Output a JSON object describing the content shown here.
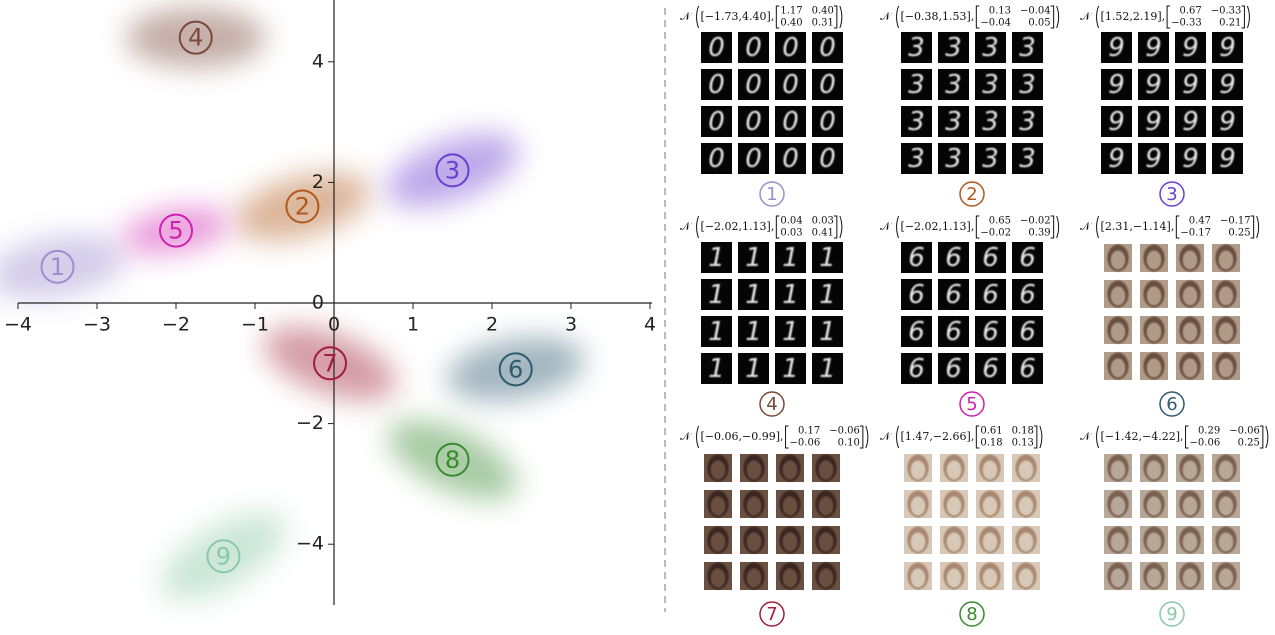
{
  "chart_data": {
    "type": "scatter",
    "xlim": [
      -4,
      4
    ],
    "ylim": [
      -5,
      5
    ],
    "xticks": [
      {
        "value": -4,
        "label": "−4"
      },
      {
        "value": -3,
        "label": "−3"
      },
      {
        "value": -2,
        "label": "−2"
      },
      {
        "value": -1,
        "label": "−1"
      },
      0,
      1,
      2,
      3,
      4
    ],
    "yticks": [
      {
        "value": -4,
        "label": "−4"
      },
      {
        "value": -2,
        "label": "−2"
      },
      0,
      2,
      4
    ],
    "clusters": [
      {
        "label": "1",
        "x": -3.5,
        "y": 0.6,
        "color": "#9c8fd0"
      },
      {
        "label": "2",
        "x": -0.4,
        "y": 1.6,
        "color": "#b05a1c"
      },
      {
        "label": "3",
        "x": 1.5,
        "y": 2.2,
        "color": "#6a3fd0"
      },
      {
        "label": "4",
        "x": -1.75,
        "y": 4.4,
        "color": "#7a4a3a"
      },
      {
        "label": "5",
        "x": -2.0,
        "y": 1.2,
        "color": "#d020b0"
      },
      {
        "label": "6",
        "x": 2.3,
        "y": -1.1,
        "color": "#2f5a70"
      },
      {
        "label": "7",
        "x": -0.05,
        "y": -1.0,
        "color": "#a0203a"
      },
      {
        "label": "8",
        "x": 1.5,
        "y": -2.6,
        "color": "#3a8a30"
      },
      {
        "label": "9",
        "x": -1.4,
        "y": -4.2,
        "color": "#8ac8a8"
      }
    ]
  },
  "distribution_symbol": "𝒩",
  "panels": [
    {
      "mean": "[−1.73,4.40],",
      "cov": [
        [
          "1.17",
          "0.40"
        ],
        [
          "0.40",
          "0.31"
        ]
      ],
      "kind": "digit",
      "glyph": "0"
    },
    {
      "mean": "[−0.38,1.53],",
      "cov": [
        [
          "0.13",
          "−0.04"
        ],
        [
          "−0.04",
          "0.05"
        ]
      ],
      "kind": "digit",
      "glyph": "3"
    },
    {
      "mean": "[1.52,2.19],",
      "cov": [
        [
          "0.67",
          "−0.33"
        ],
        [
          "−0.33",
          "0.21"
        ]
      ],
      "kind": "digit",
      "glyph": "9"
    },
    {
      "mean": "[−2.02,1.13],",
      "cov": [
        [
          "0.04",
          "0.03"
        ],
        [
          "0.03",
          "0.41"
        ]
      ],
      "kind": "digit",
      "glyph": "1"
    },
    {
      "mean": "[−2.02,1.13],",
      "cov": [
        [
          "0.65",
          "−0.02"
        ],
        [
          "−0.02",
          "0.39"
        ]
      ],
      "kind": "digit",
      "glyph": "6"
    },
    {
      "mean": "[2.31,−1.14],",
      "cov": [
        [
          "0.47",
          "−0.17"
        ],
        [
          "−0.17",
          "0.25"
        ]
      ],
      "kind": "face"
    },
    {
      "mean": "[−0.06,−0.99],",
      "cov": [
        [
          "0.17",
          "−0.06"
        ],
        [
          "−0.06",
          "0.10"
        ]
      ],
      "kind": "face"
    },
    {
      "mean": "[1.47,−2.66],",
      "cov": [
        [
          "0.61",
          "0.18"
        ],
        [
          "0.18",
          "0.13"
        ]
      ],
      "kind": "face"
    },
    {
      "mean": "[−1.42,−4.22],",
      "cov": [
        [
          "0.29",
          "−0.06"
        ],
        [
          "−0.06",
          "0.25"
        ]
      ],
      "kind": "face"
    }
  ]
}
